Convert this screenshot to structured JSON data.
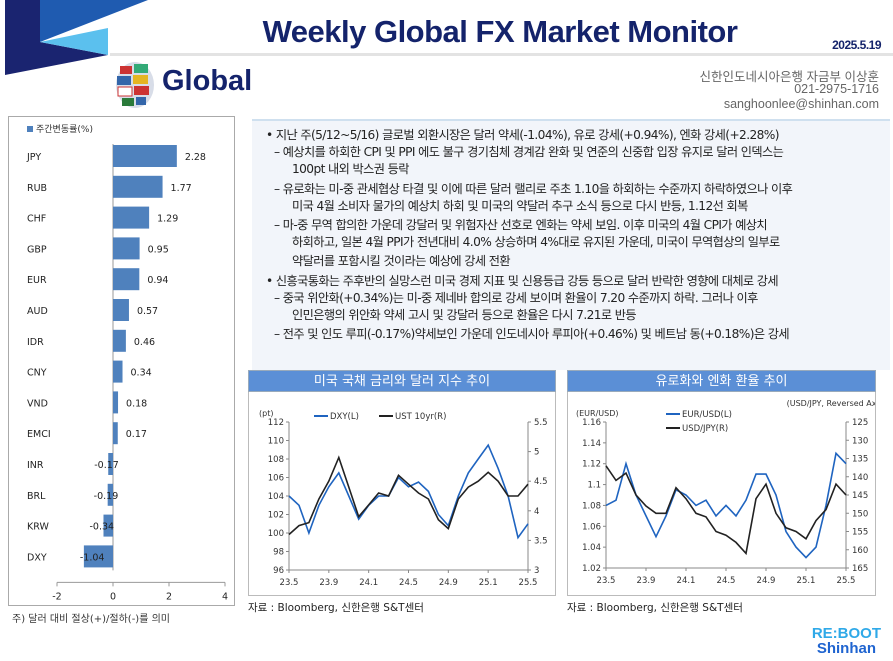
{
  "header": {
    "title": "Weekly Global FX Market Monitor",
    "date": "2025.5.19",
    "section": "Global",
    "contact": {
      "dept": "신한인도네시아은행 자금부 이상훈",
      "phone": "021-2975-1716",
      "email": "sanghoonlee@shinhan.com"
    }
  },
  "colors": {
    "navy": "#14236b",
    "accent": "#5b8fd6",
    "bar": "#4f81bd",
    "line_blue": "#1f64c0",
    "line_black": "#222222"
  },
  "text": {
    "lines": [
      {
        "lvl": 1,
        "t": "• 지난 주(5/12~5/16) 글로벌 외환시장은 달러 약세(-1.04%), 유로 강세(+0.94%), 엔화 강세(+2.28%)"
      },
      {
        "lvl": 2,
        "t": "– 예상치를 하회한 CPI 및 PPI 에도 불구 경기침체 경계감 완화 및 연준의 신중합 입장 유지로 달러 인덱스는"
      },
      {
        "lvl": 3,
        "t": "100pt 내외 박스권 등락"
      },
      {
        "lvl": 2,
        "t": "– 유로화는 미-중 관세협상 타결 및 이에 따른 달러 랠리로  주초 1.10을 하회하는 수준까지 하락하였으나 이후"
      },
      {
        "lvl": 3,
        "t": "미국 4월 소비자  물가의 예상치 하회 및 미국의 약달러 추구 소식 등으로 다시 반등, 1.12선 회복"
      },
      {
        "lvl": 2,
        "t": "– 마-중 무역 합의한 가운데 강달러 및 위험자산 선호로 엔화는 약세 보임. 이후 미국의 4월 CPI가 예상치"
      },
      {
        "lvl": 3,
        "t": "하회하고,  일본 4월 PPI가 전년대비 4.0% 상승하며 4%대로 유지된 가운데, 미국이 무역협상의 일부로"
      },
      {
        "lvl": 3,
        "t": "약달러를 포함시킬 것이라는 예상에 강세 전환"
      },
      {
        "lvl": 1,
        "t": "• 신흥국통화는 주후반의 실망스런 미국 경제 지표 및 신용등급 강등 등으로 달러 반락한 영향에 대체로 강세"
      },
      {
        "lvl": 2,
        "t": "– 중국 위안화(+0.34%)는 미-중 제네바 합의로 강세 보이며 환율이 7.20 수준까지 하락. 그러나 이후"
      },
      {
        "lvl": 3,
        "t": "인민은행의 위안화 약세 고시 및 강달러 등으로 환율은  다시 7.21로 반등"
      },
      {
        "lvl": 2,
        "t": "– 전주 및 인도 루피(-0.17%)약세보인 가운데 인도네시아 루피아(+0.46%) 및 베트남 동(+0.18%)은 강세"
      }
    ]
  },
  "chart_data": [
    {
      "type": "bar",
      "orientation": "horizontal",
      "legend": "주간변동률(%)",
      "legend_position": "top-left",
      "categories": [
        "JPY",
        "RUB",
        "CHF",
        "GBP",
        "EUR",
        "AUD",
        "IDR",
        "CNY",
        "VND",
        "EMCI",
        "INR",
        "BRL",
        "KRW",
        "DXY"
      ],
      "values": [
        2.28,
        1.77,
        1.29,
        0.95,
        0.94,
        0.57,
        0.46,
        0.34,
        0.18,
        0.17,
        -0.17,
        -0.19,
        -0.34,
        -1.04
      ],
      "xlim": [
        -2,
        4
      ],
      "xticks": [
        "-2",
        "0",
        "2",
        "4"
      ],
      "note": "주) 달러 대비 절상(+)/절하(-)를 의미"
    },
    {
      "type": "line",
      "title": "미국 국채 금리와 달러 지수 추이",
      "ylabel_left": "(pt)",
      "ylim_left": [
        96,
        112
      ],
      "yticks_left": [
        "96",
        "98",
        "100",
        "102",
        "104",
        "106",
        "108",
        "110",
        "112"
      ],
      "ylim_right": [
        3,
        5.5
      ],
      "yticks_right": [
        "3",
        "3.5",
        "4",
        "4.5",
        "5",
        "5.5"
      ],
      "xticks": [
        "23.5",
        "23.9",
        "24.1",
        "24.5",
        "24.9",
        "25.1",
        "25.5"
      ],
      "x": [
        "23.5",
        "23.6",
        "23.7",
        "23.8",
        "23.9",
        "23.10",
        "23.11",
        "23.12",
        "24.1",
        "24.2",
        "24.3",
        "24.4",
        "24.5",
        "24.6",
        "24.7",
        "24.8",
        "24.9",
        "24.10",
        "24.11",
        "24.12",
        "25.1",
        "25.2",
        "25.3",
        "25.4",
        "25.5"
      ],
      "series": [
        {
          "name": "DXY(L)",
          "axis": "left",
          "color": "#1f64c0",
          "values": [
            104,
            103,
            100,
            103,
            105,
            106.5,
            104,
            101.5,
            103,
            104,
            104,
            106,
            105,
            105.5,
            104.5,
            102,
            100.8,
            104,
            106.5,
            108,
            109.5,
            107,
            104,
            99.5,
            101
          ]
        },
        {
          "name": "UST 10yr(R)",
          "axis": "right",
          "color": "#222222",
          "values": [
            3.6,
            3.75,
            3.8,
            4.2,
            4.5,
            4.9,
            4.4,
            3.9,
            4.1,
            4.3,
            4.25,
            4.6,
            4.45,
            4.3,
            4.2,
            3.85,
            3.7,
            4.2,
            4.4,
            4.5,
            4.65,
            4.5,
            4.25,
            4.25,
            4.45
          ]
        }
      ],
      "source": "자료 : Bloomberg, 신한은행 S&T센터"
    },
    {
      "type": "line",
      "title": "유로화와 엔화 환율 추이",
      "ylabel_left": "(EUR/USD)",
      "ylim_left": [
        1.02,
        1.16
      ],
      "yticks_left": [
        "1.02",
        "1.04",
        "1.06",
        "1.08",
        "1.1",
        "1.12",
        "1.14",
        "1.16"
      ],
      "ylabel_right": "(USD/JPY, Reversed Axis)",
      "ylim_right": [
        165,
        125
      ],
      "right_reversed": true,
      "yticks_right": [
        "125",
        "130",
        "135",
        "140",
        "145",
        "150",
        "155",
        "160",
        "165"
      ],
      "xticks": [
        "23.5",
        "23.9",
        "24.1",
        "24.5",
        "24.9",
        "25.1",
        "25.5"
      ],
      "x": [
        "23.5",
        "23.6",
        "23.7",
        "23.8",
        "23.9",
        "23.10",
        "23.11",
        "23.12",
        "24.1",
        "24.2",
        "24.3",
        "24.4",
        "24.5",
        "24.6",
        "24.7",
        "24.8",
        "24.9",
        "24.10",
        "24.11",
        "24.12",
        "25.1",
        "25.2",
        "25.3",
        "25.4",
        "25.5"
      ],
      "series": [
        {
          "name": "EUR/USD(L)",
          "axis": "left",
          "color": "#1f64c0",
          "values": [
            1.08,
            1.085,
            1.12,
            1.09,
            1.07,
            1.05,
            1.07,
            1.095,
            1.09,
            1.08,
            1.085,
            1.07,
            1.08,
            1.07,
            1.085,
            1.11,
            1.11,
            1.09,
            1.055,
            1.04,
            1.03,
            1.04,
            1.08,
            1.13,
            1.12
          ]
        },
        {
          "name": "USD/JPY(R)",
          "axis": "right",
          "color": "#222222",
          "values": [
            137,
            141,
            139,
            145,
            148,
            150,
            150,
            143,
            146,
            150,
            151,
            155,
            156,
            158,
            161,
            146,
            142,
            150,
            154,
            155,
            157,
            152,
            149,
            142,
            145
          ]
        }
      ],
      "source": "자료 : Bloomberg, 신한은행 S&T센터"
    }
  ],
  "logo": {
    "line1": "RE:BOOT",
    "line2": "Shinhan"
  }
}
